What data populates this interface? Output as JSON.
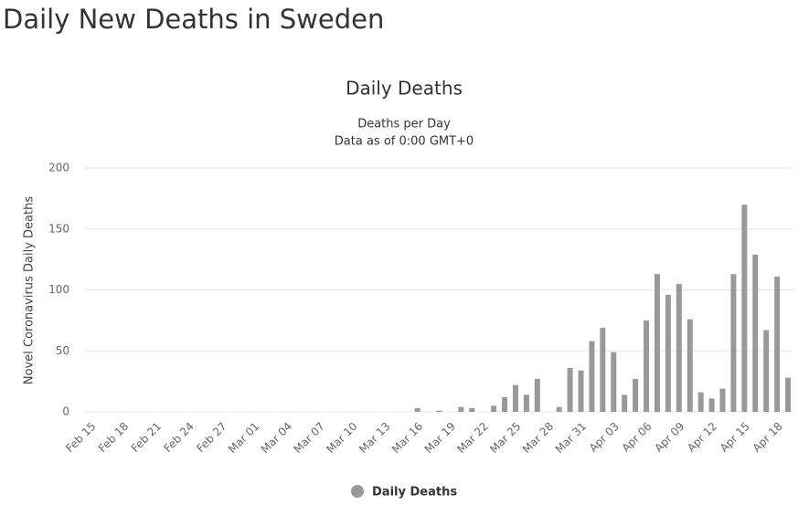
{
  "header": {
    "title": "Daily New Deaths in Sweden"
  },
  "chart_data": {
    "type": "bar",
    "title": "Daily Deaths",
    "subtitle": [
      "Deaths per Day",
      "Data as of 0:00 GMT+0"
    ],
    "y_label": "Novel Coronavirus Daily Deaths",
    "categories": [
      "Feb 15",
      null,
      null,
      "Feb 18",
      null,
      null,
      "Feb 21",
      null,
      null,
      "Feb 24",
      null,
      null,
      "Feb 27",
      null,
      null,
      "Mar 01",
      null,
      null,
      "Mar 04",
      null,
      null,
      "Mar 07",
      null,
      null,
      "Mar 10",
      null,
      null,
      "Mar 13",
      null,
      null,
      "Mar 16",
      null,
      null,
      "Mar 19",
      null,
      null,
      "Mar 22",
      null,
      null,
      "Mar 25",
      null,
      null,
      "Mar 28",
      null,
      null,
      "Mar 31",
      null,
      null,
      "Apr 03",
      null,
      null,
      "Apr 06",
      null,
      null,
      "Apr 09",
      null,
      null,
      "Apr 12",
      null,
      null,
      "Apr 15",
      null,
      null,
      "Apr 18",
      null
    ],
    "series": [
      {
        "name": "Daily Deaths",
        "color": "#999999",
        "values": [
          0,
          0,
          0,
          0,
          0,
          0,
          0,
          0,
          0,
          0,
          0,
          0,
          0,
          0,
          0,
          0,
          0,
          0,
          0,
          0,
          0,
          0,
          0,
          0,
          0,
          0,
          0,
          0,
          0,
          0,
          3,
          0,
          1,
          0,
          4,
          3,
          0,
          5,
          12,
          22,
          14,
          27,
          0,
          4,
          36,
          34,
          58,
          69,
          49,
          14,
          27,
          75,
          113,
          96,
          105,
          76,
          16,
          11,
          19,
          113,
          170,
          129,
          67,
          111,
          28
        ]
      }
    ],
    "ylim": [
      0,
      200
    ],
    "yticks": [
      0,
      50,
      100,
      150,
      200
    ],
    "grid": true,
    "legend": "bottom"
  }
}
